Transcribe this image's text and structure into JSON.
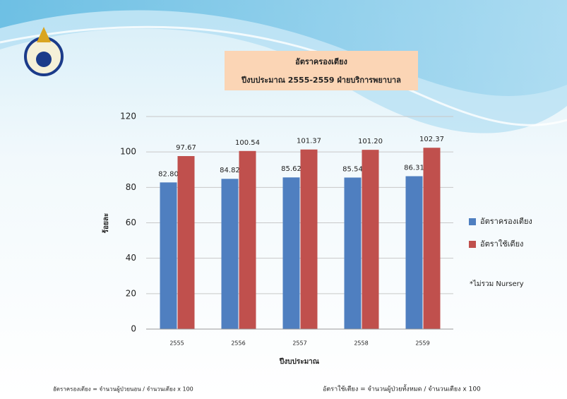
{
  "chart_data": {
    "type": "bar",
    "title": "อัตราครองเตียง",
    "subtitle": "ปีงบประมาณ 2555-2559 ฝ่ายบริการพยาบาล",
    "y_label": "ร้อยละ",
    "x_label": "ปีงบประมาณ",
    "categories": [
      "2555",
      "2556",
      "2557",
      "2558",
      "2559"
    ],
    "series": [
      {
        "name": "อัตราครองเตียง",
        "color": "#4f7fc0",
        "values": [
          82.8,
          84.82,
          85.62,
          85.54,
          86.31
        ],
        "value_labels": [
          "82.80",
          "84.82",
          "85.62",
          "85.54",
          "86.31"
        ]
      },
      {
        "name": "อัตราใช้เตียง",
        "color": "#c0504d",
        "values": [
          97.67,
          100.54,
          101.37,
          101.2,
          102.37
        ],
        "value_labels": [
          "97.67",
          "100.54",
          "101.37",
          "101.20",
          "102.37"
        ]
      }
    ],
    "ylim": [
      0,
      120
    ],
    "yticks": [
      0,
      20,
      40,
      60,
      80,
      100,
      120
    ],
    "grid": true,
    "legend": "right",
    "note": "*ไม่รวม Nursery",
    "footer_left": "อัตราครองเตียง = จำนวนผู้ป่วยนอน / จำนวนเตียง x 100",
    "footer_right": "อัตราใช้เตียง = จำนวนผู้ป่วยทั้งหมด / จำนวนเตียง x 100"
  }
}
